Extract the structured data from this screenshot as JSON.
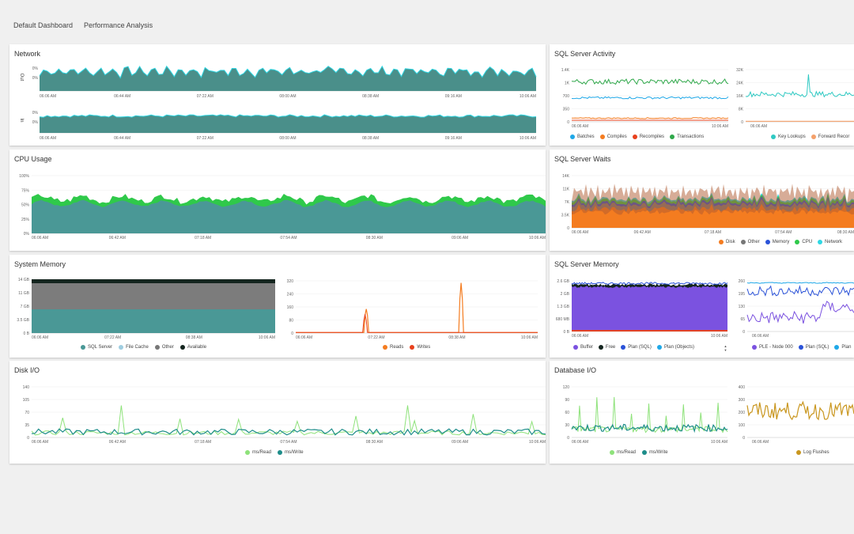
{
  "tabs": [
    "Default Dashboard",
    "Performance Analysis"
  ],
  "colors": {
    "teal": "#4a9896",
    "cyan": "#2fd7e3",
    "green": "#2fc94a",
    "orange": "#f47c20",
    "red": "#e8401c",
    "purple": "#7b52e0",
    "blue": "#2a52d8",
    "olive": "#c9961e",
    "gray": "#888888",
    "dark": "#14251f",
    "lightgreen": "#8ee27a",
    "darkteal": "#1e8d8a"
  },
  "panels": {
    "network": {
      "title": "Network",
      "rows": [
        "Out",
        "In"
      ],
      "yticks": [
        "0%",
        "0%"
      ],
      "xticks": [
        "06:06 AM",
        "06:44 AM",
        "07:22 AM",
        "08:00 AM",
        "08:38 AM",
        "09:16 AM",
        "10:06 AM"
      ]
    },
    "cpu": {
      "title": "CPU Usage",
      "yticks": [
        "100%",
        "75%",
        "50%",
        "25%",
        "0%"
      ],
      "xticks": [
        "06:06 AM",
        "06:42 AM",
        "07:18 AM",
        "07:54 AM",
        "08:30 AM",
        "09:06 AM",
        "10:06 AM"
      ]
    },
    "sysmem": {
      "title": "System Memory",
      "left_yticks": [
        "14 GB",
        "11 GB",
        "7 GB",
        "3.5 GB",
        "0 B"
      ],
      "left_xticks": [
        "06:06 AM",
        "07:22 AM",
        "08:38 AM",
        "10:06 AM"
      ],
      "right_yticks": [
        "320",
        "240",
        "160",
        "80",
        "0"
      ],
      "right_xticks": [
        "06:06 AM",
        "07:22 AM",
        "08:38 AM",
        "10:06 AM"
      ],
      "legend_left": [
        "SQL Server",
        "File Cache",
        "Other",
        "Available"
      ],
      "legend_right": [
        "Reads",
        "Writes"
      ]
    },
    "diskio": {
      "title": "Disk I/O",
      "yticks": [
        "140",
        "105",
        "70",
        "35",
        "0"
      ],
      "xticks": [
        "06:06 AM",
        "06:42 AM",
        "07:18 AM",
        "07:54 AM",
        "08:30 AM",
        "09:06 AM",
        "10:06 AM"
      ],
      "legend": [
        "ms/Read",
        "ms/Write"
      ]
    },
    "sqlactivity": {
      "title": "SQL Server Activity",
      "left_yticks": [
        "1.4K",
        "1K",
        "700",
        "350",
        "0"
      ],
      "left_xticks": [
        "06:06 AM",
        "10:06 AM"
      ],
      "right_yticks": [
        "32K",
        "24K",
        "16K",
        "8K",
        "0"
      ],
      "right_xticks": [
        "06:06 AM"
      ],
      "legend_left": [
        "Batches",
        "Compiles",
        "Recompiles",
        "Transactions"
      ],
      "legend_right": [
        "Key Lookups",
        "Forward Recor"
      ]
    },
    "sqlwaits": {
      "title": "SQL Server Waits",
      "yticks": [
        "14K",
        "11K",
        "7K",
        "3.5K",
        "0"
      ],
      "xticks": [
        "06:06 AM",
        "06:42 AM",
        "07:18 AM",
        "07:54 AM",
        "08:30 AM"
      ],
      "legend": [
        "Disk",
        "Other",
        "Memory",
        "CPU",
        "Network"
      ]
    },
    "sqlmem": {
      "title": "SQL Server Memory",
      "left_yticks": [
        "2.6 GB",
        "2 GB",
        "1.3 GB",
        "680 MB",
        "0 B"
      ],
      "left_xticks": [
        "06:06 AM",
        "10:06 AM"
      ],
      "right_yticks": [
        "260",
        "195",
        "130",
        "65",
        "0"
      ],
      "right_xticks": [
        "06:06 AM"
      ],
      "legend_left": [
        "Buffer",
        "Free",
        "Plan (SQL)",
        "Plan (Objects)"
      ],
      "legend_right": [
        "PLE - Node 000",
        "Plan (SQL)",
        "Plan"
      ],
      "scroll_glyph": "▲▼"
    },
    "dbio": {
      "title": "Database I/O",
      "left_yticks": [
        "120",
        "90",
        "60",
        "30",
        "0"
      ],
      "left_xticks": [
        "06:06 AM",
        "10:06 AM"
      ],
      "right_yticks": [
        "400",
        "300",
        "200",
        "100",
        "0"
      ],
      "right_xticks": [
        "06:06 AM"
      ],
      "legend_left": [
        "ms/Read",
        "ms/Write"
      ],
      "legend_right": [
        "Log Flushes"
      ]
    }
  }
}
